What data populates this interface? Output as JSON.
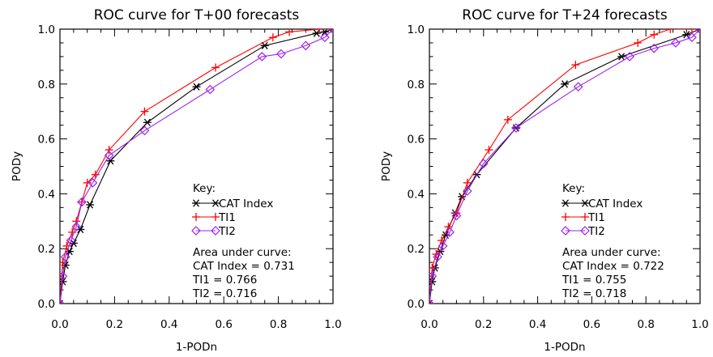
{
  "colors": {
    "cat": "#000000",
    "ti1": "#ff0000",
    "ti2": "#a020f0",
    "background": "#ffffff"
  },
  "chart_data": [
    {
      "type": "line",
      "title": "ROC curve for T+00 forecasts",
      "xlabel": "1-PODn",
      "ylabel": "PODy",
      "xlim": [
        0,
        1
      ],
      "ylim": [
        0,
        1
      ],
      "xticks": [
        "0.0",
        "0.2",
        "0.4",
        "0.6",
        "0.8",
        "1.0"
      ],
      "yticks": [
        "0.0",
        "0.2",
        "0.4",
        "0.6",
        "0.8",
        "1.0"
      ],
      "grid": false,
      "legend": {
        "title": "Key:",
        "position": "lower-right"
      },
      "auc_title": "Area under curve:",
      "auc_lines": [
        "CAT Index = 0.731",
        "TI1 = 0.766",
        "TI2 = 0.716"
      ],
      "series": [
        {
          "name": "CAT Index",
          "marker": "asterisk",
          "color": "#000000",
          "x": [
            0.0,
            0.01,
            0.02,
            0.035,
            0.05,
            0.075,
            0.11,
            0.185,
            0.32,
            0.5,
            0.75,
            0.94,
            0.97,
            1.0
          ],
          "y": [
            0.0,
            0.08,
            0.14,
            0.19,
            0.22,
            0.27,
            0.36,
            0.52,
            0.66,
            0.79,
            0.94,
            0.985,
            0.99,
            1.0
          ]
        },
        {
          "name": "TI1",
          "marker": "plus",
          "color": "#ff0000",
          "x": [
            0.0,
            0.01,
            0.025,
            0.045,
            0.06,
            0.08,
            0.1,
            0.13,
            0.18,
            0.31,
            0.57,
            0.78,
            0.84,
            0.95,
            1.0
          ],
          "y": [
            0.0,
            0.15,
            0.21,
            0.26,
            0.3,
            0.37,
            0.44,
            0.47,
            0.56,
            0.7,
            0.86,
            0.97,
            0.99,
            1.0,
            1.0
          ]
        },
        {
          "name": "TI2",
          "marker": "diamond",
          "color": "#a020f0",
          "x": [
            0.0,
            0.01,
            0.02,
            0.04,
            0.06,
            0.08,
            0.12,
            0.18,
            0.31,
            0.55,
            0.74,
            0.81,
            0.9,
            0.97,
            1.0
          ],
          "y": [
            0.0,
            0.1,
            0.17,
            0.23,
            0.28,
            0.37,
            0.44,
            0.54,
            0.63,
            0.78,
            0.9,
            0.91,
            0.94,
            0.97,
            1.0
          ]
        }
      ]
    },
    {
      "type": "line",
      "title": "ROC curve for T+24 forecasts",
      "xlabel": "1-PODn",
      "ylabel": "PODy",
      "xlim": [
        0,
        1
      ],
      "ylim": [
        0,
        1
      ],
      "xticks": [
        "0.0",
        "0.2",
        "0.4",
        "0.6",
        "0.8",
        "1.0"
      ],
      "yticks": [
        "0.0",
        "0.2",
        "0.4",
        "0.6",
        "0.8",
        "1.0"
      ],
      "grid": false,
      "legend": {
        "title": "Key:",
        "position": "lower-right"
      },
      "auc_title": "Area under curve:",
      "auc_lines": [
        "CAT Index = 0.722",
        "TI1 = 0.755",
        "TI2 = 0.718"
      ],
      "series": [
        {
          "name": "CAT Index",
          "marker": "asterisk",
          "color": "#000000",
          "x": [
            0.0,
            0.01,
            0.02,
            0.04,
            0.06,
            0.095,
            0.12,
            0.175,
            0.32,
            0.5,
            0.71,
            0.95,
            1.0
          ],
          "y": [
            0.0,
            0.08,
            0.13,
            0.19,
            0.25,
            0.33,
            0.39,
            0.47,
            0.64,
            0.8,
            0.9,
            0.98,
            1.0
          ]
        },
        {
          "name": "TI1",
          "marker": "plus",
          "color": "#ff0000",
          "x": [
            0.0,
            0.01,
            0.025,
            0.045,
            0.07,
            0.1,
            0.14,
            0.22,
            0.29,
            0.54,
            0.77,
            0.83,
            0.89,
            0.97,
            1.0
          ],
          "y": [
            0.0,
            0.13,
            0.18,
            0.23,
            0.28,
            0.33,
            0.44,
            0.56,
            0.67,
            0.87,
            0.95,
            0.98,
            1.0,
            1.0,
            1.0
          ]
        },
        {
          "name": "TI2",
          "marker": "diamond",
          "color": "#a020f0",
          "x": [
            0.0,
            0.01,
            0.03,
            0.05,
            0.075,
            0.1,
            0.14,
            0.2,
            0.32,
            0.55,
            0.74,
            0.83,
            0.91,
            0.97,
            1.0
          ],
          "y": [
            0.0,
            0.1,
            0.17,
            0.21,
            0.26,
            0.32,
            0.41,
            0.51,
            0.64,
            0.79,
            0.9,
            0.93,
            0.95,
            0.97,
            1.0
          ]
        }
      ]
    }
  ]
}
